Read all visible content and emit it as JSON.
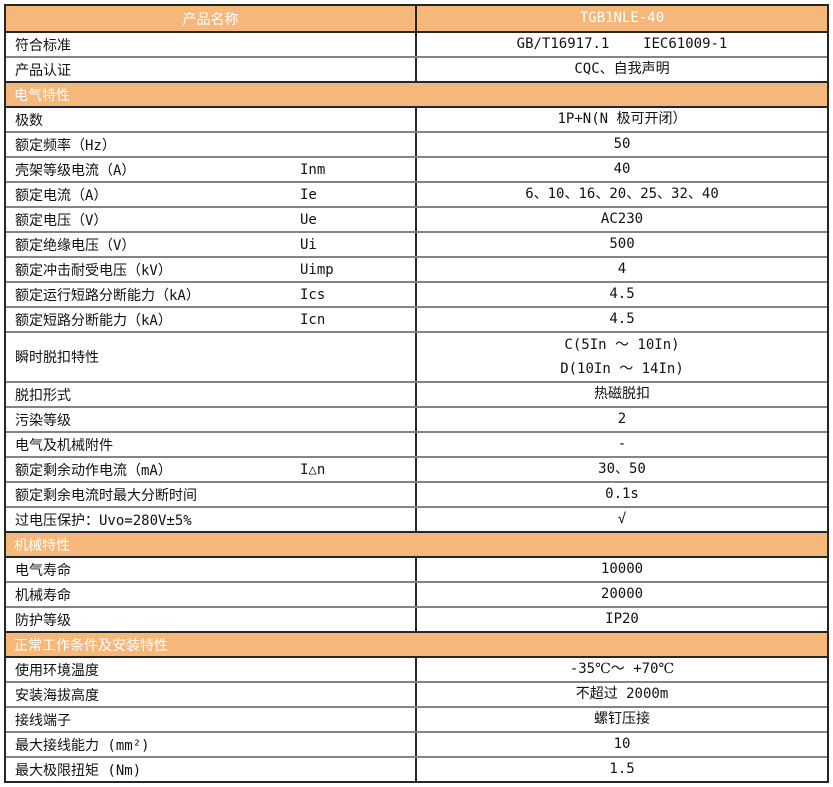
{
  "page": {
    "background": "#ffffff"
  },
  "table": {
    "accent_color": "#F5B87A",
    "grid_gray_color": "#848484",
    "grid_dark_color": "#262626",
    "text_color": "#111111",
    "header_text_color": "#ffffff",
    "rows": [
      {
        "type": "header",
        "label": "产品名称",
        "value": "TGB1NLE-40"
      },
      {
        "type": "data",
        "label": "符合标准",
        "value": "GB/T16917.1    IEC61009-1"
      },
      {
        "type": "data",
        "label": "产品认证",
        "value": "CQC、自我声明"
      },
      {
        "type": "section",
        "label": "电气特性"
      },
      {
        "type": "data",
        "label": "极数",
        "value": "1P+N(N 极可开闭）"
      },
      {
        "type": "data",
        "label": "额定频率（Hz）",
        "value": "50"
      },
      {
        "type": "data",
        "label": "壳架等级电流（A）",
        "symbol": "Inm",
        "value": "40"
      },
      {
        "type": "data",
        "label": "额定电流（A）",
        "symbol": "Ie",
        "value": "6、10、16、20、25、32、40"
      },
      {
        "type": "data",
        "label": "额定电压（V）",
        "symbol": "Ue",
        "value": "AC230"
      },
      {
        "type": "data",
        "label": "额定绝缘电压（V）",
        "symbol": "Ui",
        "value": "500"
      },
      {
        "type": "data",
        "label": "额定冲击耐受电压（kV）",
        "symbol": "Uimp",
        "value": "4"
      },
      {
        "type": "data",
        "label": "额定运行短路分断能力（kA）",
        "symbol": "Ics",
        "value": "4.5"
      },
      {
        "type": "data",
        "label": "额定短路分断能力（kA）",
        "symbol": "Icn",
        "value": "4.5"
      },
      {
        "type": "data",
        "label": "瞬时脱扣特性",
        "value": "C(5In ～ 10In)\nD(10In ～ 14In)",
        "tall": true
      },
      {
        "type": "data",
        "label": "脱扣形式",
        "value": "热磁脱扣"
      },
      {
        "type": "data",
        "label": "污染等级",
        "value": "2"
      },
      {
        "type": "data",
        "label": "电气及机械附件",
        "value": "-"
      },
      {
        "type": "data",
        "label": "额定剩余动作电流（mA）",
        "symbol": "I△n",
        "value": "30、50"
      },
      {
        "type": "data",
        "label": "额定剩余电流时最大分断时间",
        "value": "0.1s"
      },
      {
        "type": "data",
        "label": "过电压保护：Uvo=280V±5%",
        "value": "√"
      },
      {
        "type": "section",
        "label": "机械特性"
      },
      {
        "type": "data",
        "label": "电气寿命",
        "value": "10000"
      },
      {
        "type": "data",
        "label": "机械寿命",
        "value": "20000"
      },
      {
        "type": "data",
        "label": "防护等级",
        "value": "IP20"
      },
      {
        "type": "section",
        "label": "正常工作条件及安装特性"
      },
      {
        "type": "data",
        "label": "使用环境温度",
        "value": "-35℃～ +70℃"
      },
      {
        "type": "data",
        "label": "安装海拔高度",
        "value": "不超过 2000m"
      },
      {
        "type": "data",
        "label": "接线端子",
        "value": "螺钉压接"
      },
      {
        "type": "data",
        "label": "最大接线能力 (mm²)",
        "value": "10"
      },
      {
        "type": "data",
        "label": "最大极限扭矩 (Nm)",
        "value": "1.5"
      }
    ]
  }
}
